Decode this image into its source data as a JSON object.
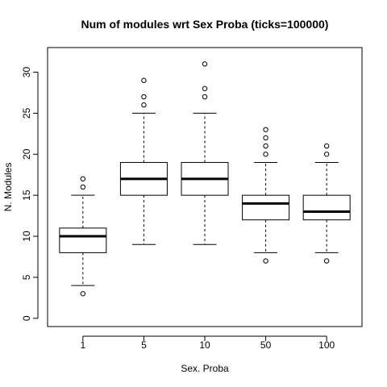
{
  "chart_data": {
    "type": "boxplot",
    "title": "Num of modules wrt Sex Proba (ticks=100000)",
    "xlabel": "Sex. Proba",
    "ylabel": "N. Modules",
    "ylim": [
      -1,
      33
    ],
    "yticks": [
      0,
      5,
      10,
      15,
      20,
      25,
      30
    ],
    "grid": false,
    "legend": "none",
    "categories": [
      "1",
      "5",
      "10",
      "50",
      "100"
    ],
    "boxes": [
      {
        "category": "1",
        "whisker_low": 4,
        "q1": 8,
        "median": 10,
        "q3": 11,
        "whisker_high": 15,
        "outliers": [
          3,
          16,
          17
        ]
      },
      {
        "category": "5",
        "whisker_low": 9,
        "q1": 15,
        "median": 17,
        "q3": 19,
        "whisker_high": 25,
        "outliers": [
          26,
          27,
          29
        ]
      },
      {
        "category": "10",
        "whisker_low": 9,
        "q1": 15,
        "median": 17,
        "q3": 19,
        "whisker_high": 25,
        "outliers": [
          27,
          28,
          31
        ]
      },
      {
        "category": "50",
        "whisker_low": 8,
        "q1": 12,
        "median": 14,
        "q3": 15,
        "whisker_high": 19,
        "outliers": [
          7,
          20,
          21,
          22,
          23
        ]
      },
      {
        "category": "100",
        "whisker_low": 8,
        "q1": 12,
        "median": 13,
        "q3": 15,
        "whisker_high": 19,
        "outliers": [
          7,
          20,
          21
        ]
      }
    ]
  }
}
